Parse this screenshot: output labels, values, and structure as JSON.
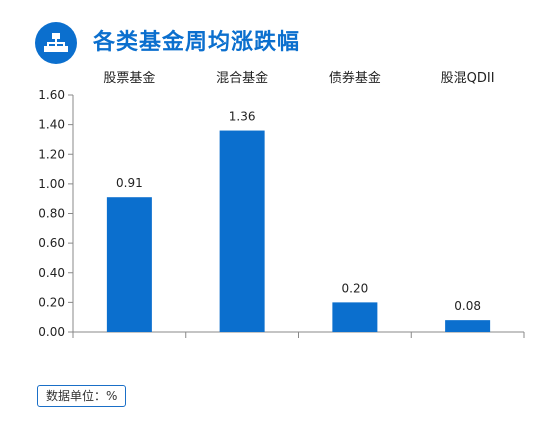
{
  "header": {
    "title": "各类基金周均涨跌幅",
    "icon": "hierarchy-icon"
  },
  "unit_note": "数据单位：%",
  "colors": {
    "accent": "#0b6fce",
    "bar": "#0b6fce",
    "axis": "#888888",
    "text": "#222222"
  },
  "chart_data": {
    "type": "bar",
    "categories": [
      "股票基金",
      "混合基金",
      "债券基金",
      "股混QDII"
    ],
    "values": [
      0.91,
      1.36,
      0.2,
      0.08
    ],
    "value_labels": [
      "0.91",
      "1.36",
      "0.20",
      "0.08"
    ],
    "title": "各类基金周均涨跌幅",
    "xlabel": "",
    "ylabel": "",
    "ylim": [
      0,
      1.6
    ],
    "y_ticks": [
      "0.00",
      "0.20",
      "0.40",
      "0.60",
      "0.80",
      "1.00",
      "1.20",
      "1.40",
      "1.60"
    ],
    "category_axis_position": "top",
    "grid": false,
    "legend": "none"
  }
}
